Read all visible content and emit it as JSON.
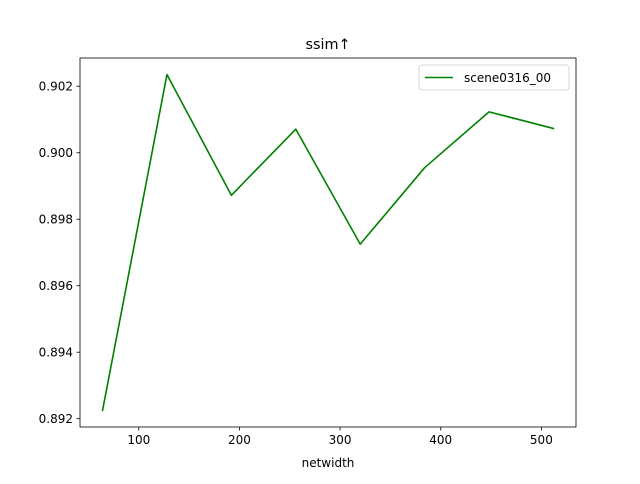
{
  "chart_data": {
    "type": "line",
    "title": "ssim↑",
    "xlabel": "netwidth",
    "ylabel": "",
    "xlim": [
      41.6,
      534.4
    ],
    "ylim": [
      0.89175,
      0.90285
    ],
    "xticks": [
      100,
      200,
      300,
      400,
      500
    ],
    "yticks": [
      0.892,
      0.894,
      0.896,
      0.898,
      0.9,
      0.902
    ],
    "xtick_labels": [
      "100",
      "200",
      "300",
      "400",
      "500"
    ],
    "ytick_labels": [
      "0.892",
      "0.894",
      "0.896",
      "0.898",
      "0.900",
      "0.902"
    ],
    "grid": false,
    "legend_position": "top-right",
    "series": [
      {
        "name": "scene0316_00",
        "color": "#008000",
        "x": [
          64,
          128,
          192,
          256,
          320,
          384,
          448,
          512
        ],
        "y": [
          0.89225,
          0.90235,
          0.89872,
          0.90071,
          0.89725,
          0.89955,
          0.90123,
          0.90073
        ]
      }
    ]
  }
}
